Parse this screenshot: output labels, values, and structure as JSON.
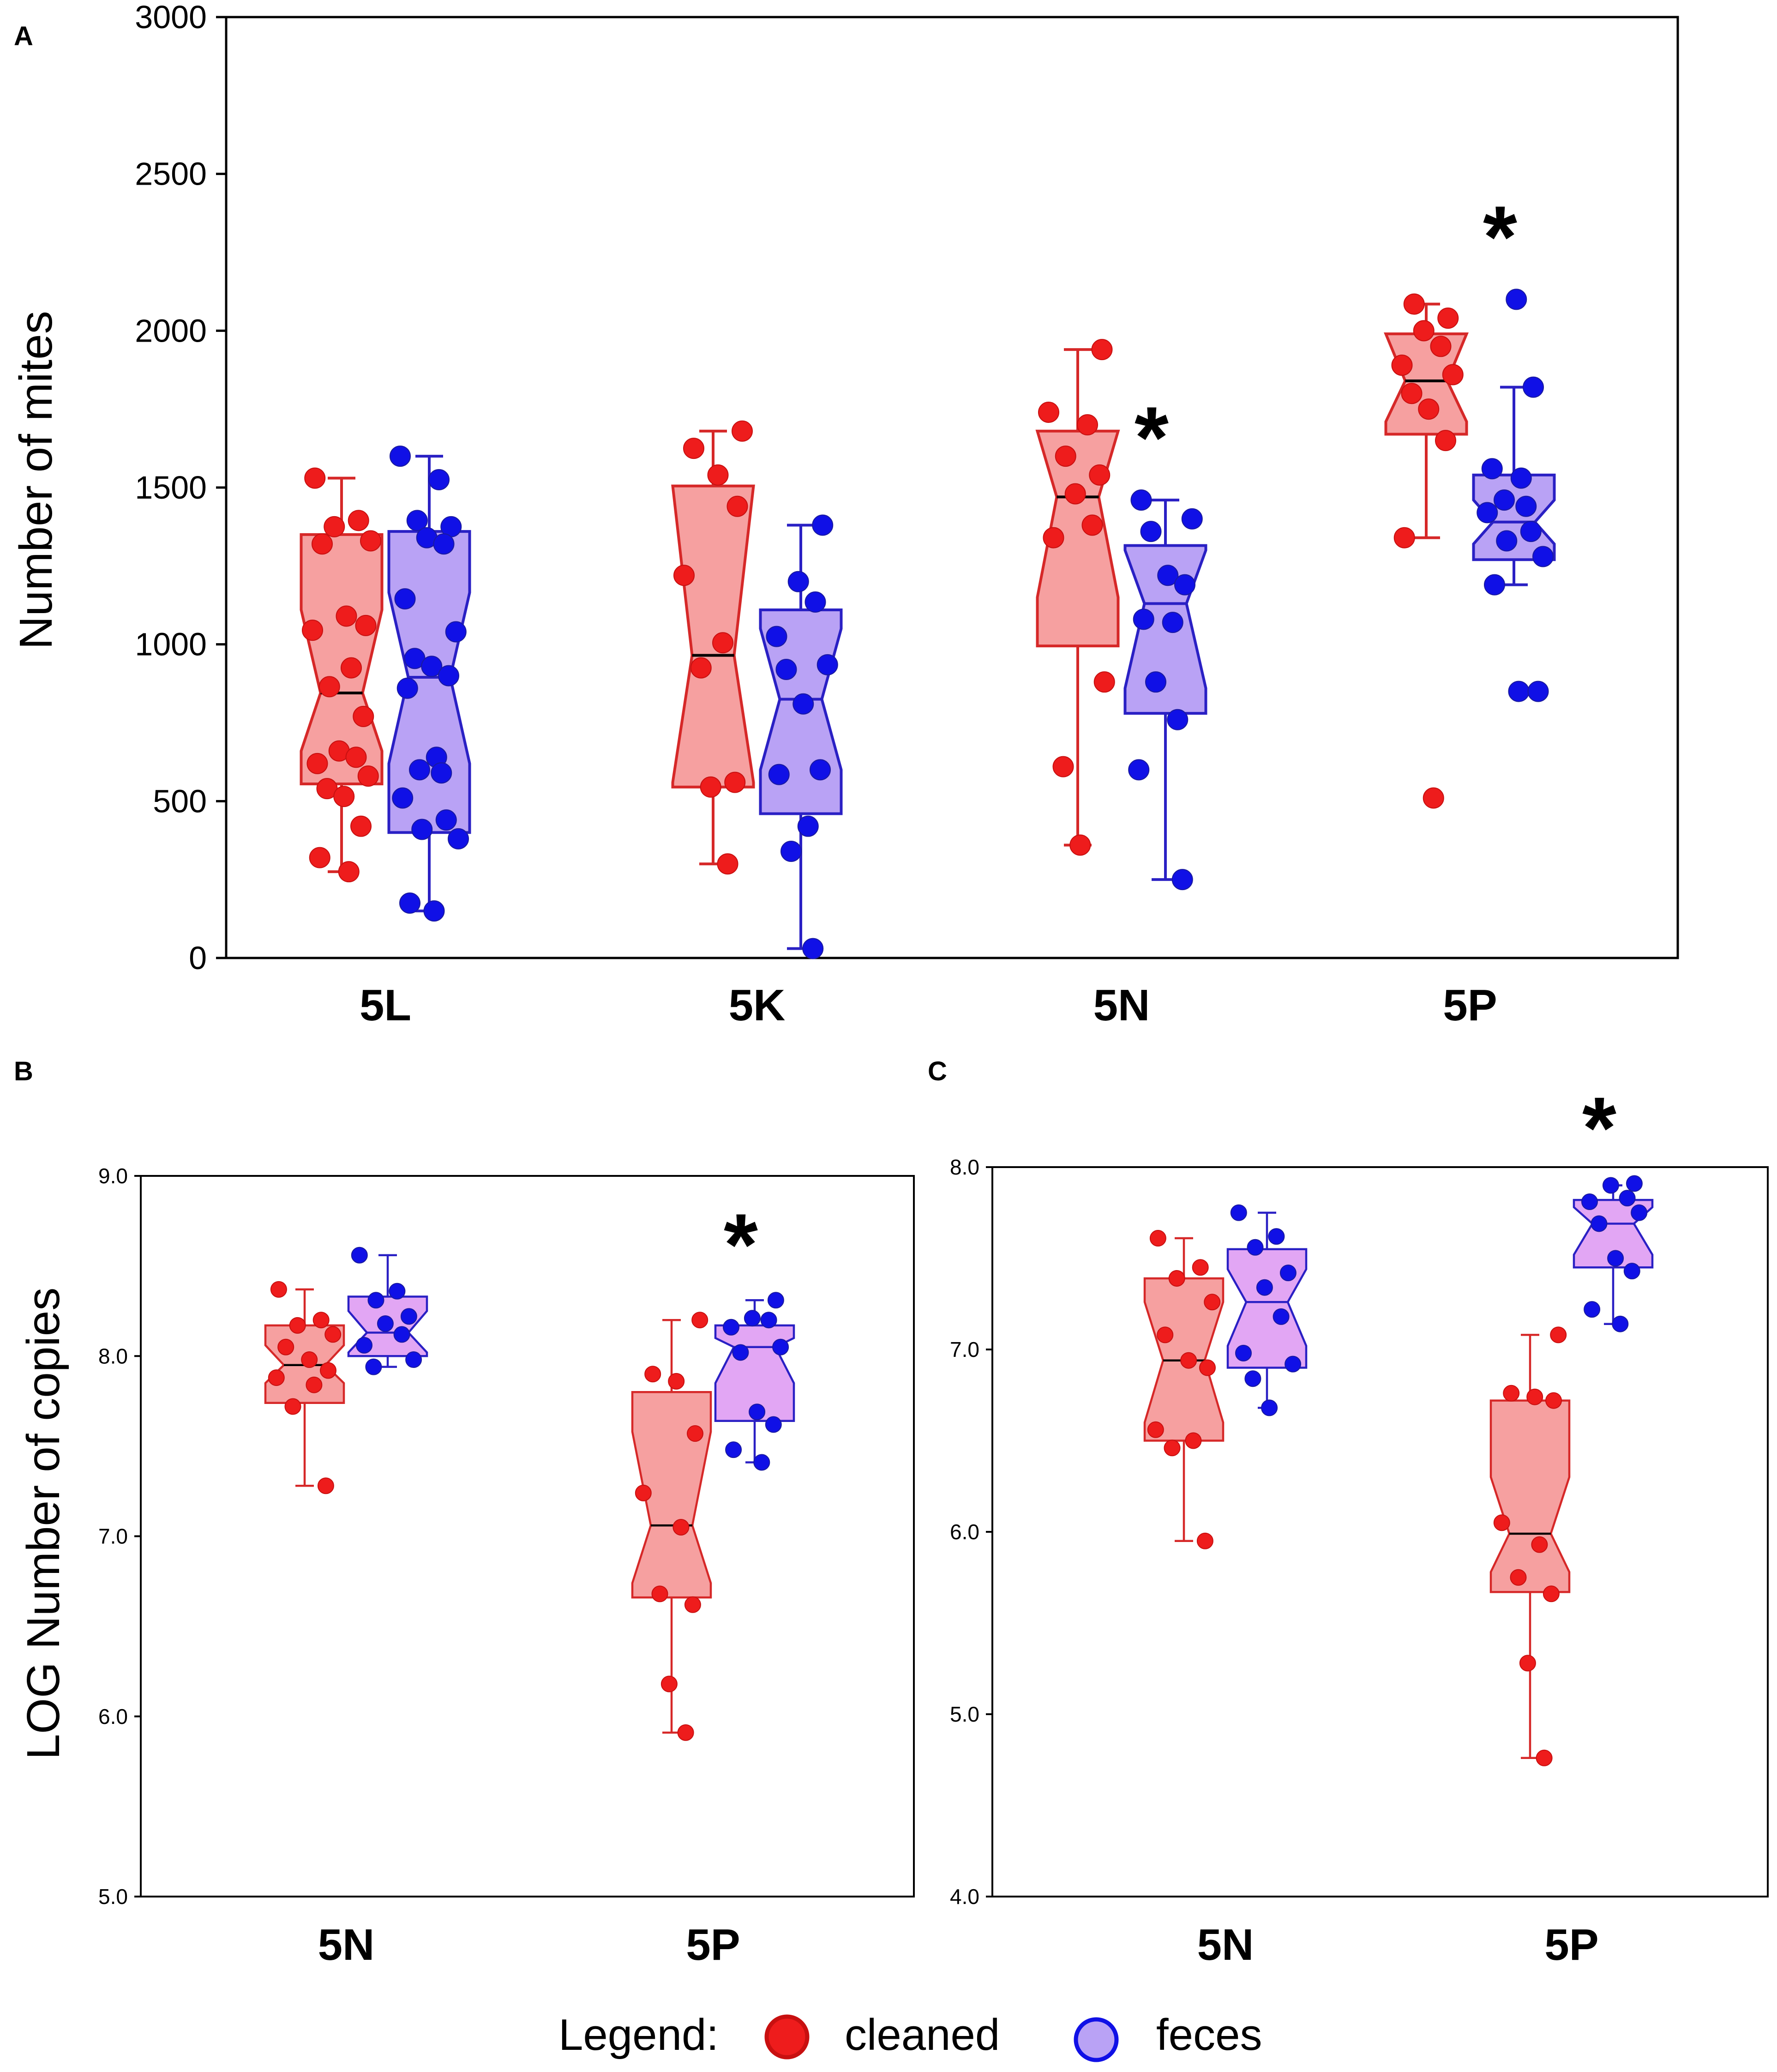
{
  "colors": {
    "cleaned_fill": "#f6a0a0",
    "cleaned_line": "#d62828",
    "cleaned_point": "#ee1c1c",
    "feces_fill_a": "#b9a2f5",
    "feces_fill_bc": "#e2a6f4",
    "feces_line": "#2a20c4",
    "feces_point": "#1010e6"
  },
  "legend": {
    "title": "Legend:",
    "cleaned": "cleaned",
    "feces": "feces"
  },
  "chart_data": [
    {
      "panel": "A",
      "type": "box",
      "ylabel": "Number of mites",
      "ylim": [
        0,
        3000
      ],
      "yticks": [
        "0",
        "500",
        "1000",
        "1500",
        "2000",
        "2500",
        "3000"
      ],
      "categories": [
        "5L",
        "5K",
        "5N",
        "5P"
      ],
      "significance": [
        "",
        "",
        "*",
        "*"
      ],
      "series": [
        {
          "name": "cleaned",
          "boxes": [
            {
              "q1": 555,
              "median": 845,
              "q3": 1350,
              "whisker_low": 275,
              "whisker_high": 1530,
              "notch_low": 660,
              "notch_high": 1110,
              "points": [
                1530,
                1395,
                1375,
                1330,
                1320,
                1090,
                1060,
                1045,
                925,
                865,
                770,
                660,
                640,
                620,
                580,
                540,
                515,
                420,
                320,
                275
              ]
            },
            {
              "q1": 545,
              "median": 965,
              "q3": 1505,
              "whisker_low": 300,
              "whisker_high": 1680,
              "notch_low": 560,
              "notch_high": 1505,
              "points": [
                1680,
                1625,
                1540,
                1440,
                1220,
                1005,
                925,
                560,
                545,
                300
              ]
            },
            {
              "q1": 995,
              "median": 1470,
              "q3": 1680,
              "whisker_low": 360,
              "whisker_high": 1940,
              "notch_low": 1150,
              "notch_high": 1680,
              "points": [
                1940,
                1740,
                1700,
                1600,
                1540,
                1480,
                1380,
                1340,
                880,
                610,
                360
              ]
            },
            {
              "q1": 1670,
              "median": 1840,
              "q3": 1990,
              "whisker_low": 1340,
              "whisker_high": 2085,
              "notch_low": 1710,
              "notch_high": 1990,
              "points": [
                2085,
                2040,
                2000,
                1950,
                1890,
                1860,
                1800,
                1750,
                1650,
                1340,
                510
              ]
            }
          ]
        },
        {
          "name": "feces",
          "boxes": [
            {
              "q1": 400,
              "median": 895,
              "q3": 1360,
              "whisker_low": 150,
              "whisker_high": 1600,
              "notch_low": 620,
              "notch_high": 1165,
              "points": [
                1600,
                1525,
                1395,
                1375,
                1340,
                1320,
                1145,
                1040,
                955,
                930,
                900,
                860,
                640,
                600,
                590,
                510,
                440,
                410,
                380,
                175,
                150
              ]
            },
            {
              "q1": 460,
              "median": 825,
              "q3": 1110,
              "whisker_low": 30,
              "whisker_high": 1380,
              "notch_low": 600,
              "notch_high": 1050,
              "points": [
                1380,
                1200,
                1135,
                1025,
                935,
                920,
                810,
                600,
                585,
                420,
                340,
                30
              ]
            },
            {
              "q1": 780,
              "median": 1130,
              "q3": 1315,
              "whisker_low": 250,
              "whisker_high": 1460,
              "notch_low": 860,
              "notch_high": 1300,
              "points": [
                1460,
                1400,
                1360,
                1220,
                1190,
                1080,
                1070,
                880,
                760,
                600,
                250
              ]
            },
            {
              "q1": 1270,
              "median": 1390,
              "q3": 1540,
              "whisker_low": 1190,
              "whisker_high": 1820,
              "notch_low": 1320,
              "notch_high": 1460,
              "points": [
                2100,
                1820,
                1560,
                1530,
                1460,
                1440,
                1420,
                1360,
                1330,
                1280,
                1190,
                850,
                850
              ]
            }
          ]
        }
      ]
    },
    {
      "panel": "B",
      "type": "box",
      "ylabel": "LOG Number of copies",
      "ylim": [
        5.0,
        9.0
      ],
      "yticks": [
        "5.0",
        "6.0",
        "7.0",
        "8.0",
        "9.0"
      ],
      "categories": [
        "5N",
        "5P"
      ],
      "significance": [
        "",
        "*"
      ],
      "series": [
        {
          "name": "cleaned",
          "boxes": [
            {
              "q1": 7.74,
              "median": 7.95,
              "q3": 8.17,
              "whisker_low": 7.28,
              "whisker_high": 8.37,
              "notch_low": 7.85,
              "notch_high": 8.06,
              "points": [
                8.37,
                8.2,
                8.17,
                8.12,
                8.05,
                7.98,
                7.92,
                7.88,
                7.84,
                7.72,
                7.28
              ]
            },
            {
              "q1": 6.66,
              "median": 7.06,
              "q3": 7.8,
              "whisker_low": 5.91,
              "whisker_high": 8.2,
              "notch_low": 6.74,
              "notch_high": 7.58,
              "points": [
                8.2,
                7.9,
                7.86,
                7.57,
                7.24,
                7.05,
                6.68,
                6.62,
                6.18,
                5.91
              ]
            }
          ]
        },
        {
          "name": "feces",
          "boxes": [
            {
              "q1": 8.0,
              "median": 8.13,
              "q3": 8.33,
              "whisker_low": 7.94,
              "whisker_high": 8.56,
              "notch_low": 8.02,
              "notch_high": 8.25,
              "points": [
                8.56,
                8.36,
                8.31,
                8.22,
                8.18,
                8.12,
                8.06,
                7.98,
                7.94
              ]
            },
            {
              "q1": 7.64,
              "median": 8.05,
              "q3": 8.17,
              "whisker_low": 7.41,
              "whisker_high": 8.31,
              "notch_low": 7.85,
              "notch_high": 8.1,
              "points": [
                8.31,
                8.21,
                8.2,
                8.16,
                8.05,
                8.02,
                7.69,
                7.62,
                7.48,
                7.41
              ]
            }
          ]
        }
      ]
    },
    {
      "panel": "C",
      "type": "box",
      "ylabel": "",
      "ylim": [
        4.0,
        8.0
      ],
      "yticks": [
        "4.0",
        "5.0",
        "6.0",
        "7.0",
        "8.0"
      ],
      "categories": [
        "5N",
        "5P"
      ],
      "significance": [
        "",
        "*"
      ],
      "series": [
        {
          "name": "cleaned",
          "boxes": [
            {
              "q1": 6.5,
              "median": 6.94,
              "q3": 7.39,
              "whisker_low": 5.95,
              "whisker_high": 7.61,
              "notch_low": 6.6,
              "notch_high": 7.26,
              "points": [
                7.61,
                7.45,
                7.39,
                7.26,
                7.08,
                6.94,
                6.9,
                6.56,
                6.5,
                6.46,
                5.95
              ]
            },
            {
              "q1": 5.67,
              "median": 5.99,
              "q3": 6.72,
              "whisker_low": 4.76,
              "whisker_high": 7.08,
              "notch_low": 5.78,
              "notch_high": 6.3,
              "points": [
                7.08,
                6.76,
                6.74,
                6.72,
                6.05,
                5.93,
                5.75,
                5.66,
                5.28,
                4.76
              ]
            }
          ]
        },
        {
          "name": "feces",
          "boxes": [
            {
              "q1": 6.9,
              "median": 7.26,
              "q3": 7.55,
              "whisker_low": 6.68,
              "whisker_high": 7.75,
              "notch_low": 7.02,
              "notch_high": 7.44,
              "points": [
                7.75,
                7.62,
                7.56,
                7.42,
                7.34,
                7.18,
                6.98,
                6.92,
                6.84,
                6.68
              ]
            },
            {
              "q1": 7.45,
              "median": 7.69,
              "q3": 7.82,
              "whisker_low": 7.14,
              "whisker_high": 7.9,
              "notch_low": 7.52,
              "notch_high": 7.78,
              "points": [
                7.91,
                7.9,
                7.83,
                7.81,
                7.75,
                7.69,
                7.5,
                7.43,
                7.22,
                7.14
              ]
            }
          ]
        }
      ]
    }
  ]
}
